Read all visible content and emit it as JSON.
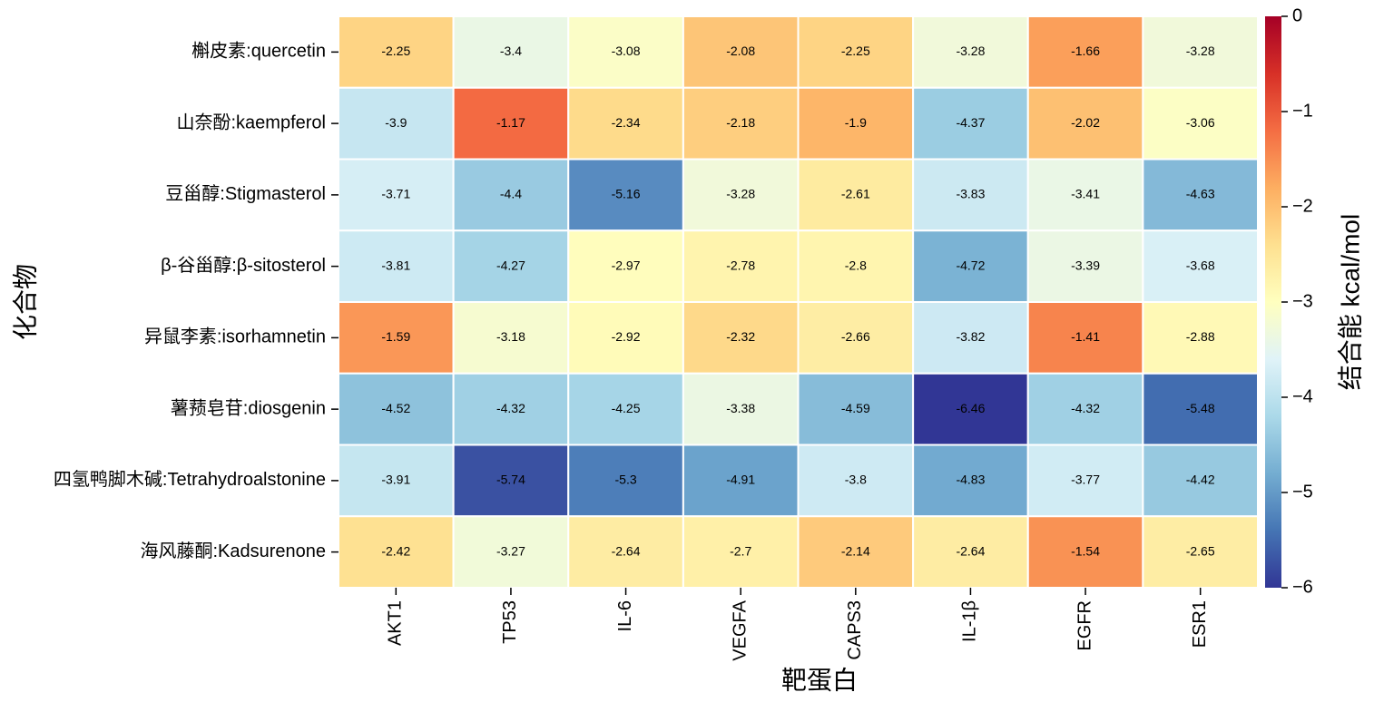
{
  "chart_data": {
    "type": "heatmap",
    "xlabel": "靶蛋白",
    "ylabel": "化合物",
    "colorbar_label": "结合能  kcal/mol",
    "colormap": "RdYlBu_r",
    "columns": [
      "AKT1",
      "TP53",
      "IL-6",
      "VEGFA",
      "CAPS3",
      "IL-1β",
      "EGFR",
      "ESR1"
    ],
    "rows": [
      "槲皮素:quercetin",
      "山奈酚:kaempferol",
      "豆甾醇:Stigmasterol",
      "β-谷甾醇:β-sitosterol",
      "异鼠李素:isorhamnetin",
      "薯蓣皂苷:diosgenin",
      "四氢鸭脚木碱:Tetrahydroalstonine",
      "海风藤酮:Kadsurenone"
    ],
    "values": [
      [
        -2.25,
        -3.4,
        -3.08,
        -2.08,
        -2.25,
        -3.28,
        -1.66,
        -3.28
      ],
      [
        -3.9,
        -1.17,
        -2.34,
        -2.18,
        -1.9,
        -4.37,
        -2.02,
        -3.06
      ],
      [
        -3.71,
        -4.4,
        -5.16,
        -3.28,
        -2.61,
        -3.83,
        -3.41,
        -4.63
      ],
      [
        -3.81,
        -4.27,
        -2.97,
        -2.78,
        -2.8,
        -4.72,
        -3.39,
        -3.68
      ],
      [
        -1.59,
        -3.18,
        -2.92,
        -2.32,
        -2.66,
        -3.82,
        -1.41,
        -2.88
      ],
      [
        -4.52,
        -4.32,
        -4.25,
        -3.38,
        -4.59,
        -6.46,
        -4.32,
        -5.48
      ],
      [
        -3.91,
        -5.74,
        -5.3,
        -4.91,
        -3.8,
        -4.83,
        -3.77,
        -4.42
      ],
      [
        -2.42,
        -3.27,
        -2.64,
        -2.7,
        -2.14,
        -2.64,
        -1.54,
        -2.65
      ]
    ],
    "clim": [
      -6,
      0
    ],
    "cticks": [
      {
        "value": -6,
        "label": "−6"
      },
      {
        "value": -5,
        "label": "−5"
      },
      {
        "value": -4,
        "label": "−4"
      },
      {
        "value": -3,
        "label": "−3"
      },
      {
        "value": -2,
        "label": "−2"
      },
      {
        "value": -1,
        "label": "−1"
      },
      0
    ]
  }
}
